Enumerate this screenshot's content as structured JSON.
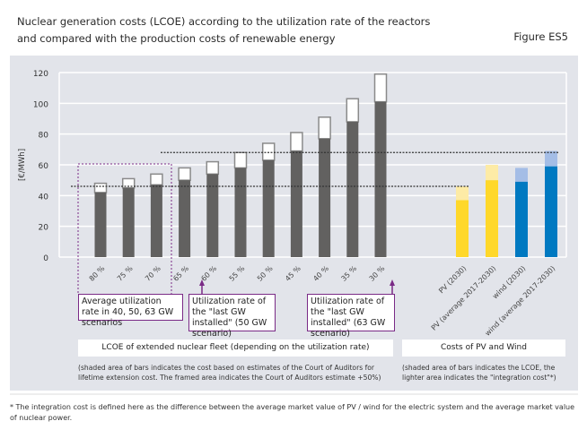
{
  "header": {
    "title_line1": "Nuclear generation costs (LCOE) according to the utilization rate of the reactors",
    "title_line2": "and compared with the production costs of renewable energy",
    "figure_label": "Figure ES5"
  },
  "chart_data": {
    "type": "bar",
    "ylabel": "[€/MWh]",
    "ylim": [
      0,
      120
    ],
    "yticks": [
      "0",
      "20",
      "40",
      "60",
      "80",
      "100",
      "120"
    ],
    "grid": true,
    "nuclear": {
      "categories": [
        "80 %",
        "75 %",
        "70 %",
        "65 %",
        "60 %",
        "55 %",
        "50 %",
        "45 %",
        "40 %",
        "35 %",
        "30 %"
      ],
      "shaded_values": [
        42,
        45,
        47,
        50,
        54,
        58,
        63,
        69,
        77,
        88,
        101
      ],
      "framed_values": [
        48,
        51,
        54,
        58,
        62,
        68,
        74,
        81,
        91,
        103,
        119
      ]
    },
    "renewables": {
      "categories": [
        "PV (2030)",
        "PV (average 2017-2030)",
        "wind (2030)",
        "wind (average 2017-2030)"
      ],
      "lcoe_values": [
        37,
        50,
        49,
        59
      ],
      "total_with_integration": [
        46,
        60,
        58,
        69
      ],
      "colors": [
        "#ffd82a",
        "#ffd82a",
        "#0079c1",
        "#0079c1"
      ],
      "light_colors": [
        "#fdeba6",
        "#fdeba6",
        "#a4bde6",
        "#a4bde6"
      ]
    },
    "reference_lines": [
      46,
      68
    ],
    "colors": {
      "nuclear_dark": "#626160",
      "nuclear_frame": "#8a8a8a",
      "annotation": "#7a2a86"
    }
  },
  "annotations": {
    "avg_rate": "Average utilization rate in 40, 50, 63 GW scenarios",
    "last_gw_50": "Utilization rate of the \"last GW installed\" (50 GW scenario)",
    "last_gw_63": "Utilization rate of the \"last GW installed\" (63 GW scenario)"
  },
  "legend": {
    "nuclear": "LCOE of extended nuclear fleet (depending on the utilization rate)",
    "renewables": "Costs of PV and Wind",
    "nuclear_note": "(shaded area of bars indicates the cost based on estimates of the Court of Auditors for lifetime extension cost. The framed area indicates the Court of Auditors estimate +50%)",
    "renewables_note": "(shaded area of bars indicates the LCOE, the lighter area indicates the \"integration cost\"*)"
  },
  "footnote": "* The integration cost is defined here as the difference between the average market value of PV / wind for the electric system and the average market value of nuclear power."
}
